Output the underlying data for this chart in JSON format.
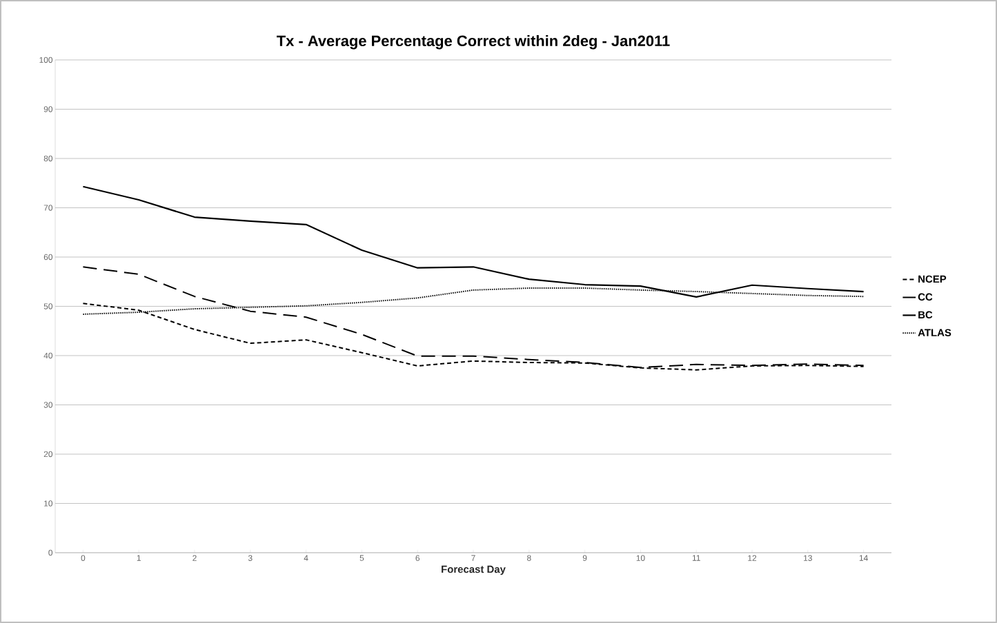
{
  "chart_data": {
    "type": "line",
    "title": "Tx - Average Percentage Correct within 2deg - Jan2011",
    "xlabel": "Forecast Day",
    "categories": [
      "0",
      "1",
      "2",
      "3",
      "4",
      "5",
      "6",
      "7",
      "8",
      "9",
      "10",
      "11",
      "12",
      "13",
      "14"
    ],
    "ylim": [
      0,
      100
    ],
    "yticks": [
      0,
      10,
      20,
      30,
      40,
      50,
      60,
      70,
      80,
      90,
      100
    ],
    "grid": "y",
    "legend": "right",
    "marker": "none",
    "series": [
      {
        "name": "NCEP",
        "color": "#000000",
        "line_style": "dashed",
        "values": [
          50.6,
          49.2,
          45.3,
          42.5,
          43.2,
          40.6,
          37.9,
          38.9,
          38.6,
          38.5,
          37.5,
          37.1,
          37.9,
          38.0,
          37.8
        ]
      },
      {
        "name": "CC",
        "color": "#000000",
        "line_style": "dashed",
        "values": [
          58.0,
          56.5,
          52.0,
          49.0,
          47.8,
          44.3,
          39.9,
          39.9,
          39.2,
          38.6,
          37.6,
          38.2,
          38.0,
          38.3,
          38.0
        ]
      },
      {
        "name": "BC",
        "color": "#000000",
        "line_style": "solid",
        "values": [
          74.3,
          71.6,
          68.1,
          67.3,
          66.6,
          61.4,
          57.8,
          58.0,
          55.5,
          54.4,
          54.1,
          51.9,
          54.3,
          53.6,
          53.0
        ]
      },
      {
        "name": "ATLAS",
        "color": "#000000",
        "line_style": "dotted",
        "values": [
          48.4,
          48.8,
          49.5,
          49.8,
          50.1,
          50.8,
          51.7,
          53.3,
          53.7,
          53.7,
          53.3,
          53.0,
          52.6,
          52.2,
          52.0
        ]
      }
    ]
  }
}
